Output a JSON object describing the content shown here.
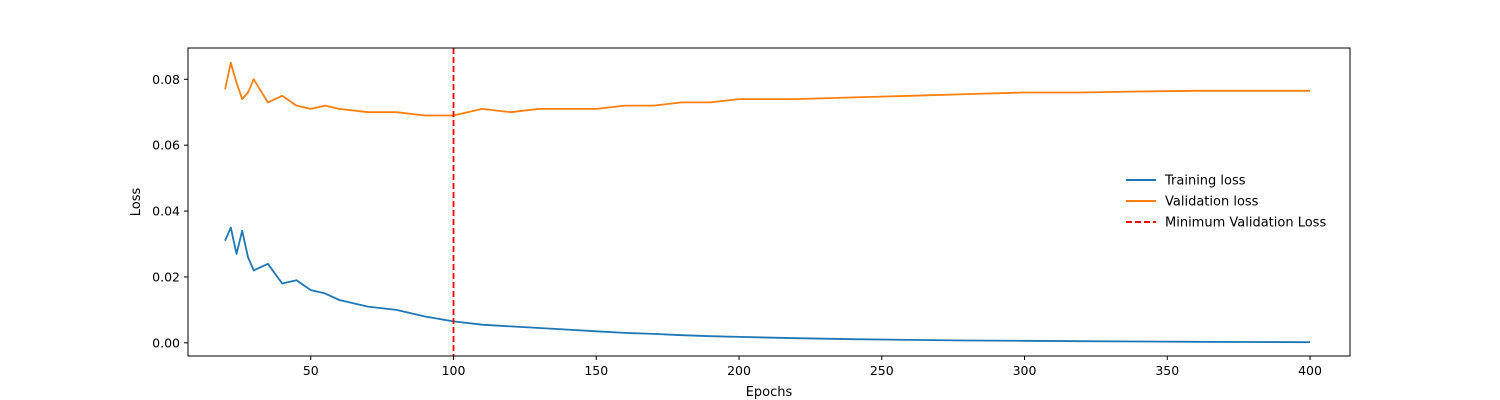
{
  "chart_data": {
    "type": "line",
    "title": "",
    "xlabel": "Epochs",
    "ylabel": "Loss",
    "xlim": [
      7,
      414
    ],
    "ylim": [
      -0.004,
      0.0895
    ],
    "xticks": [
      50,
      100,
      150,
      200,
      250,
      300,
      350,
      400
    ],
    "yticks": [
      0.0,
      0.02,
      0.04,
      0.06,
      0.08
    ],
    "ytick_labels": [
      "0.00",
      "0.02",
      "0.04",
      "0.06",
      "0.08"
    ],
    "grid": false,
    "legend_position": "center-right",
    "x": [
      20,
      22,
      24,
      26,
      28,
      30,
      35,
      40,
      45,
      50,
      55,
      60,
      70,
      80,
      90,
      100,
      110,
      120,
      130,
      140,
      150,
      160,
      170,
      180,
      190,
      200,
      220,
      240,
      260,
      280,
      300,
      320,
      340,
      360,
      380,
      400
    ],
    "series": [
      {
        "name": "Training loss",
        "color": "#1f77b4",
        "style": "solid",
        "values": [
          0.031,
          0.035,
          0.027,
          0.034,
          0.026,
          0.022,
          0.024,
          0.018,
          0.019,
          0.016,
          0.015,
          0.013,
          0.011,
          0.01,
          0.008,
          0.0065,
          0.0055,
          0.005,
          0.0045,
          0.004,
          0.0035,
          0.003,
          0.0027,
          0.0023,
          0.002,
          0.0018,
          0.0014,
          0.0011,
          0.0009,
          0.0007,
          0.0006,
          0.0005,
          0.0004,
          0.0003,
          0.00025,
          0.0002
        ]
      },
      {
        "name": "Validation loss",
        "color": "#ff7f0e",
        "style": "solid",
        "values": [
          0.077,
          0.085,
          0.079,
          0.074,
          0.076,
          0.08,
          0.073,
          0.075,
          0.072,
          0.071,
          0.072,
          0.071,
          0.07,
          0.07,
          0.069,
          0.069,
          0.071,
          0.07,
          0.071,
          0.071,
          0.071,
          0.072,
          0.072,
          0.073,
          0.073,
          0.074,
          0.074,
          0.0745,
          0.075,
          0.0755,
          0.076,
          0.076,
          0.0763,
          0.0765,
          0.0765,
          0.0765
        ]
      }
    ],
    "vlines": [
      {
        "name": "Minimum Validation Loss",
        "x": 100,
        "color": "#ff0000",
        "style": "dashed"
      }
    ]
  }
}
